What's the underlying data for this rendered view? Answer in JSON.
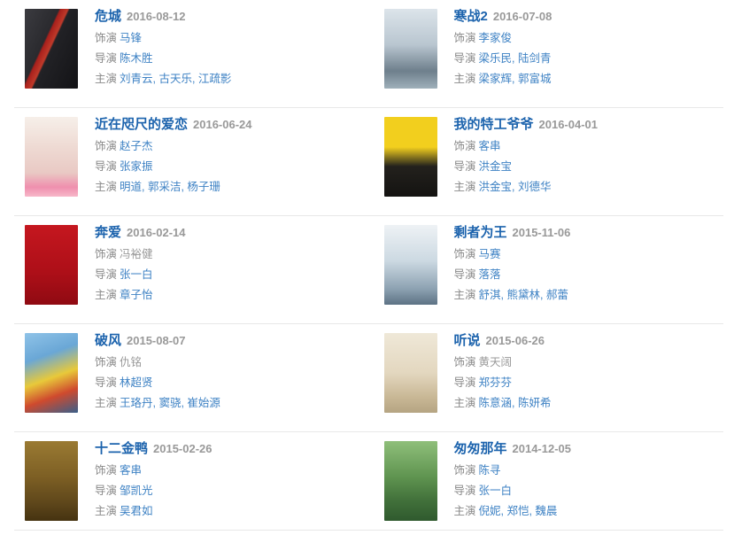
{
  "labels": {
    "role": "饰演",
    "director": "导演",
    "starring": "主演"
  },
  "colors": {
    "title_link": "#1c63ad",
    "name_link": "#3e82c4",
    "label_gray": "#888888",
    "date_gray": "#999999",
    "separator": "#e8e8e8"
  },
  "movies": [
    {
      "title": "危城",
      "date": "2016-08-12",
      "role": "马锋",
      "directors": "陈木胜",
      "starring": "刘青云, 古天乐, 江疏影",
      "poster_style": "background: linear-gradient(115deg,#3b3b40 0%,#2a2a2e 38%,#a8201c 40%,#c03a2a 48%,#222226 50%,#131316 100%)"
    },
    {
      "title": "寒战2",
      "date": "2016-07-08",
      "role": "李家俊",
      "directors": "梁乐民, 陆剑青",
      "starring": "梁家辉, 郭富城",
      "poster_style": "background: linear-gradient(180deg,#dce4ea 0%,#b9c6d0 45%,#6e7f8c 78%,#9fb0ba 100%)"
    },
    {
      "title": "近在咫尺的爱恋",
      "date": "2016-06-24",
      "role": "赵子杰",
      "directors": "张家振",
      "starring": "明道, 郭采洁, 杨子珊",
      "poster_style": "background: linear-gradient(180deg,#f6efe9 0%,#eed9d2 40%,#e9c9c4 70%,#ef8fae 88%,#f7b7c9 100%)"
    },
    {
      "title": "我的特工爷爷",
      "date": "2016-04-01",
      "role": "客串",
      "directors": "洪金宝",
      "starring": "洪金宝, 刘德华",
      "poster_style": "background: linear-gradient(180deg,#f2cf1e 0%,#f2cf1e 38%,#23211d 62%,#141311 100%)"
    },
    {
      "title": "奔爱",
      "date": "2016-02-14",
      "role": "冯裕健",
      "directors": "张一白",
      "starring": "章子怡",
      "poster_style": "background: linear-gradient(180deg,#c5171f 0%,#ad0f18 60%,#8f0a12 100%)"
    },
    {
      "title": "剩者为王",
      "date": "2015-11-06",
      "role": "马赛",
      "directors": "落落",
      "starring": "舒淇, 熊黛林, 郝蕾",
      "poster_style": "background: linear-gradient(180deg,#eef2f5 0%,#ccd9e2 45%,#8da2b2 80%,#5d7284 100%)"
    },
    {
      "title": "破风",
      "date": "2015-08-07",
      "role": "仇铭",
      "directors": "林超贤",
      "starring": "王珞丹, 窦骁, 崔始源",
      "poster_style": "background: linear-gradient(160deg,#8fc3e8 0%,#6aa7d6 30%,#e8c93a 55%,#cf4a2e 75%,#3a5f8a 100%)"
    },
    {
      "title": "听说",
      "date": "2015-06-26",
      "role": "黄天阔",
      "directors": "郑芬芬",
      "starring": "陈意涵, 陈妍希",
      "poster_style": "background: linear-gradient(180deg,#efe8d8 0%,#e3d7bf 50%,#c9b896 80%,#b5a482 100%)"
    },
    {
      "title": "十二金鸭",
      "date": "2015-02-26",
      "role": "客串",
      "directors": "邹凯光",
      "starring": "吴君如",
      "poster_style": "background: linear-gradient(180deg,#9a7a33 0%,#7d5f24 45%,#5c451a 80%,#453310 100%)"
    },
    {
      "title": "匆匆那年",
      "date": "2014-12-05",
      "role": "陈寻",
      "directors": "张一白",
      "starring": "倪妮, 郑恺, 魏晨",
      "poster_style": "background: linear-gradient(180deg,#8fbf7a 0%,#5f9450 45%,#41703a 75%,#2f5a2e 100%)"
    }
  ]
}
